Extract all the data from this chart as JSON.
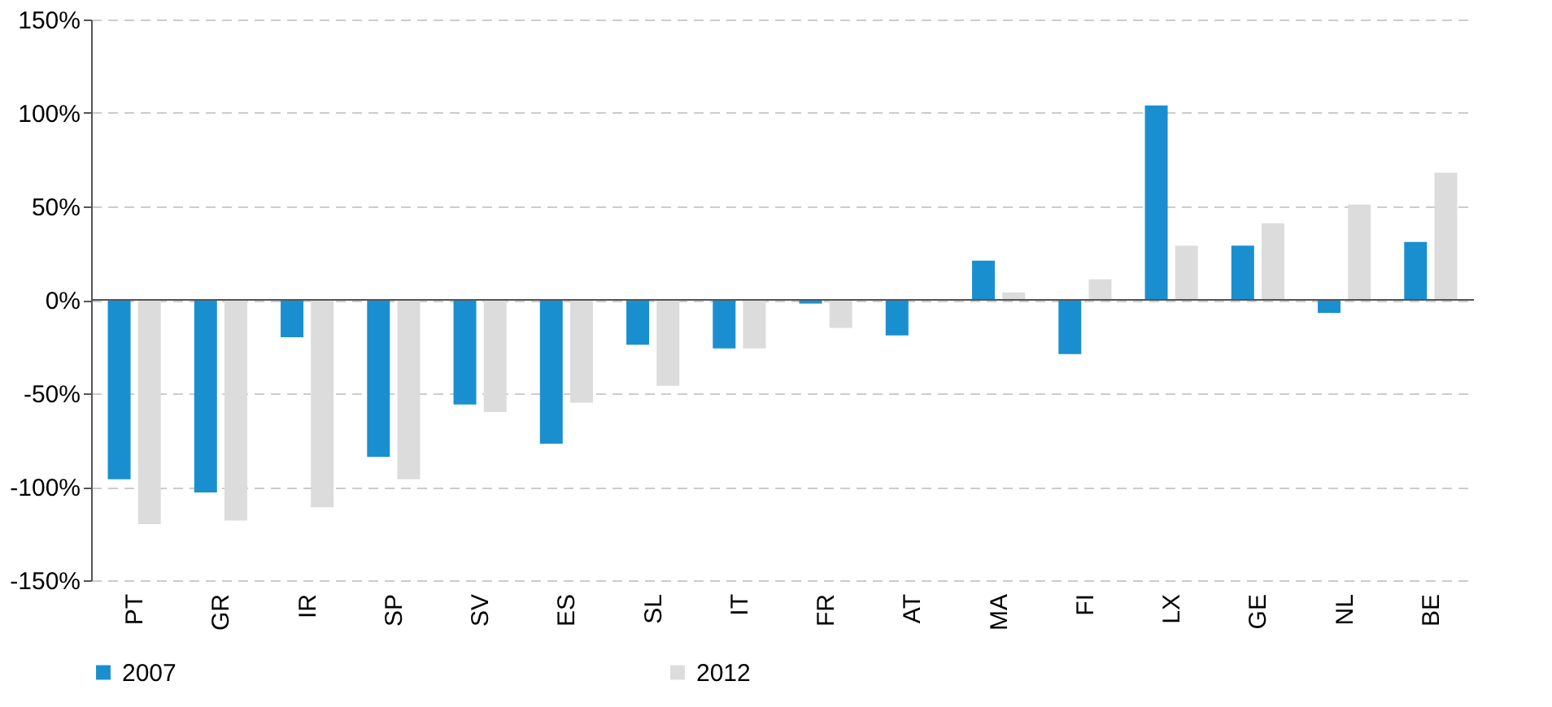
{
  "chart_data": {
    "type": "bar",
    "categories": [
      "PT",
      "GR",
      "IR",
      "SP",
      "SV",
      "ES",
      "SL",
      "IT",
      "FR",
      "AT",
      "MA",
      "FI",
      "LX",
      "GE",
      "NL",
      "BE"
    ],
    "series": [
      {
        "name": "2007",
        "color": "#1a8fd0",
        "values": [
          -96,
          -103,
          -20,
          -84,
          -56,
          -77,
          -24,
          -26,
          -2,
          -19,
          21,
          -29,
          104,
          29,
          -7,
          31
        ]
      },
      {
        "name": "2012",
        "color": "#dcdcdc",
        "values": [
          -120,
          -118,
          -111,
          -96,
          -60,
          -55,
          -46,
          -26,
          -15,
          0,
          4,
          11,
          29,
          41,
          51,
          68
        ]
      }
    ],
    "ylim": [
      -150,
      150
    ],
    "yticks": [
      {
        "value": -150,
        "label": "-150%"
      },
      {
        "value": -100,
        "label": "-100%"
      },
      {
        "value": -50,
        "label": "-50%"
      },
      {
        "value": 0,
        "label": "0%"
      },
      {
        "value": 50,
        "label": "50%"
      },
      {
        "value": 100,
        "label": "100%"
      },
      {
        "value": 150,
        "label": "150%"
      }
    ],
    "grid": "y",
    "legend": "bottom"
  }
}
